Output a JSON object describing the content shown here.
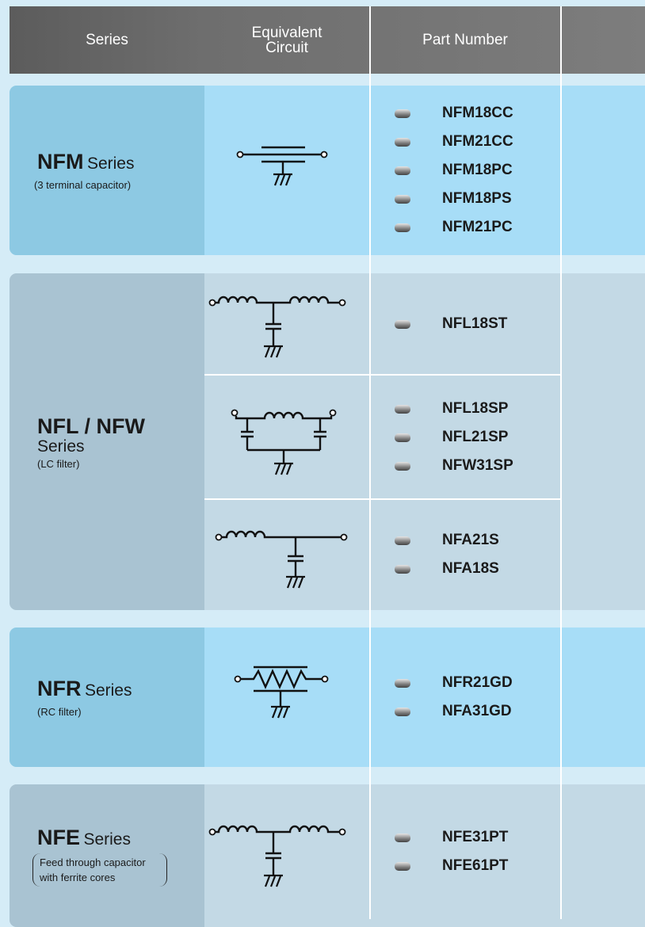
{
  "header": {
    "series": "Series",
    "circuit": "Equivalent Circuit",
    "part_number": "Part Number"
  },
  "groups": [
    {
      "name": "NFM",
      "suffix": "Series",
      "note": "(3 terminal capacitor)",
      "rows": [
        [
          "NFM18CC",
          "NFM21CC",
          "NFM18PC",
          "NFM18PS",
          "NFM21PC"
        ]
      ]
    },
    {
      "name": "NFL / NFW",
      "suffix": "Series",
      "note": "(LC filter)",
      "rows": [
        [
          "NFL18ST"
        ],
        [
          "NFL18SP",
          "NFL21SP",
          "NFW31SP"
        ],
        [
          "NFA21S",
          "NFA18S"
        ]
      ]
    },
    {
      "name": "NFR",
      "suffix": "Series",
      "note": "(RC filter)",
      "rows": [
        [
          "NFR21GD",
          "NFA31GD"
        ]
      ]
    },
    {
      "name": "NFE",
      "suffix": "Series",
      "note": "Feed through capacitor with ferrite cores",
      "rows": [
        [
          "NFE31PT",
          "NFE61PT"
        ]
      ]
    }
  ]
}
